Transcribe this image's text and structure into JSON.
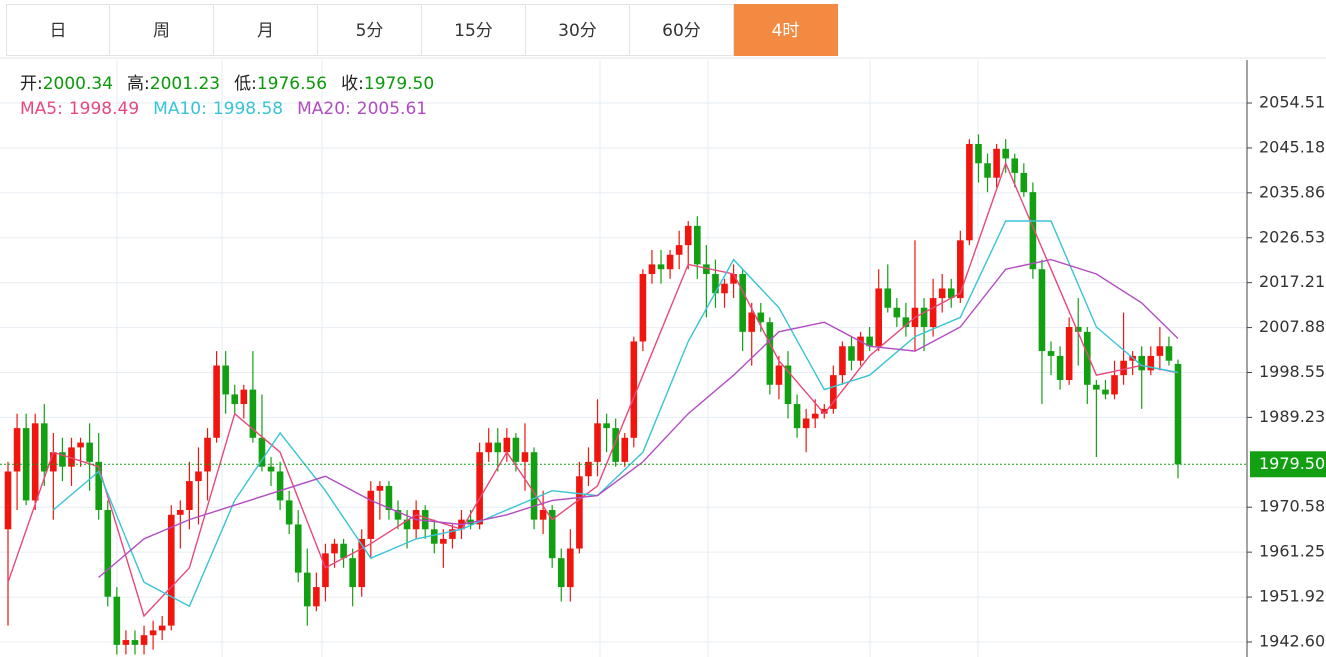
{
  "tabs": {
    "items": [
      "日",
      "周",
      "月",
      "5分",
      "15分",
      "30分",
      "60分",
      "4时"
    ],
    "active": 7
  },
  "header": {
    "ohlc": [
      {
        "label": "开:",
        "value": "2000.34"
      },
      {
        "label": "高:",
        "value": "2001.23"
      },
      {
        "label": "低:",
        "value": "1976.56"
      },
      {
        "label": "收:",
        "value": "1979.50"
      }
    ],
    "label_color": "#222",
    "value_color": "#0a9a0a"
  },
  "chart_data": {
    "type": "candlestick",
    "up_color": "#f0150e",
    "down_color": "#12a012",
    "ylim": [
      1939.48,
      2063.44
    ],
    "yticks": [
      {
        "value": 1942.6,
        "label": "1942.60"
      },
      1951.92,
      1961.25,
      1970.58,
      1989.23,
      1998.55,
      2007.88,
      2017.21,
      2026.53,
      2035.86,
      2045.18,
      2054.51
    ],
    "grid": true,
    "last_price": {
      "value": 1979.5,
      "label": "1979.50",
      "color": "#12a012"
    },
    "candles": [
      [
        1966,
        1980,
        1946,
        1978
      ],
      [
        1978,
        1990,
        1970,
        1987
      ],
      [
        1987,
        1990,
        1971,
        1972
      ],
      [
        1972,
        1990,
        1970,
        1988
      ],
      [
        1988,
        1992,
        1975,
        1978
      ],
      [
        1978,
        1986,
        1968,
        1982
      ],
      [
        1982,
        1985,
        1976,
        1979
      ],
      [
        1979,
        1985,
        1975,
        1983
      ],
      [
        1983,
        1985,
        1979,
        1984
      ],
      [
        1984,
        1988,
        1974,
        1980
      ],
      [
        1980,
        1986,
        1968,
        1970
      ],
      [
        1970,
        1972,
        1950,
        1952
      ],
      [
        1952,
        1954,
        1940,
        1942
      ],
      [
        1942,
        1945,
        1940,
        1943
      ],
      [
        1943,
        1945,
        1940,
        1942
      ],
      [
        1942,
        1946,
        1940,
        1944
      ],
      [
        1944,
        1947,
        1941,
        1945
      ],
      [
        1945,
        1948,
        1943,
        1946
      ],
      [
        1946,
        1971,
        1945,
        1969
      ],
      [
        1969,
        1972,
        1962,
        1970
      ],
      [
        1970,
        1980,
        1966,
        1976
      ],
      [
        1976,
        1983,
        1967,
        1978
      ],
      [
        1978,
        1987,
        1972,
        1985
      ],
      [
        1985,
        2003,
        1984,
        2000
      ],
      [
        2000,
        2003,
        1990,
        1994
      ],
      [
        1994,
        1996,
        1990,
        1992
      ],
      [
        1992,
        1996,
        1989,
        1995
      ],
      [
        1995,
        2003,
        1984,
        1985
      ],
      [
        1985,
        1994,
        1978,
        1979
      ],
      [
        1979,
        1981,
        1975,
        1978
      ],
      [
        1978,
        1980,
        1970,
        1972
      ],
      [
        1972,
        1974,
        1965,
        1967
      ],
      [
        1967,
        1970,
        1955,
        1957
      ],
      [
        1957,
        1962,
        1946,
        1950
      ],
      [
        1950,
        1957,
        1949,
        1954
      ],
      [
        1954,
        1963,
        1951,
        1961
      ],
      [
        1961,
        1964,
        1958,
        1963
      ],
      [
        1963,
        1964,
        1958,
        1960
      ],
      [
        1960,
        1962,
        1950,
        1954
      ],
      [
        1954,
        1966,
        1952,
        1964
      ],
      [
        1964,
        1976,
        1960,
        1974
      ],
      [
        1974,
        1976,
        1968,
        1975
      ],
      [
        1975,
        1976,
        1968,
        1970
      ],
      [
        1970,
        1972,
        1966,
        1968
      ],
      [
        1968,
        1970,
        1962,
        1966
      ],
      [
        1966,
        1972,
        1964,
        1970
      ],
      [
        1970,
        1971,
        1964,
        1966
      ],
      [
        1966,
        1968,
        1961,
        1963
      ],
      [
        1963,
        1966,
        1958,
        1964
      ],
      [
        1964,
        1967,
        1962,
        1966
      ],
      [
        1966,
        1970,
        1964,
        1968
      ],
      [
        1968,
        1970,
        1966,
        1967
      ],
      [
        1967,
        1984,
        1966,
        1982
      ],
      [
        1982,
        1987,
        1980,
        1984
      ],
      [
        1984,
        1987,
        1978,
        1982
      ],
      [
        1982,
        1987,
        1980,
        1985
      ],
      [
        1985,
        1986,
        1978,
        1980
      ],
      [
        1980,
        1988,
        1974,
        1982
      ],
      [
        1982,
        1983,
        1966,
        1968
      ],
      [
        1968,
        1974,
        1965,
        1970
      ],
      [
        1970,
        1971,
        1958,
        1960
      ],
      [
        1960,
        1962,
        1951,
        1954
      ],
      [
        1954,
        1966,
        1951,
        1962
      ],
      [
        1962,
        1980,
        1961,
        1977
      ],
      [
        1977,
        1983,
        1975,
        1980
      ],
      [
        1980,
        1993,
        1977,
        1988
      ],
      [
        1988,
        1990,
        1982,
        1987
      ],
      [
        1987,
        1989,
        1979,
        1980
      ],
      [
        1980,
        1986,
        1979,
        1985
      ],
      [
        1985,
        2006,
        1983,
        2005
      ],
      [
        2005,
        2020,
        2003,
        2019
      ],
      [
        2019,
        2024,
        2017,
        2021
      ],
      [
        2021,
        2024,
        2017,
        2020
      ],
      [
        2020,
        2024,
        2018,
        2023
      ],
      [
        2023,
        2028,
        2020,
        2025
      ],
      [
        2025,
        2030,
        2020,
        2029
      ],
      [
        2029,
        2031,
        2018,
        2021
      ],
      [
        2021,
        2025,
        2010,
        2019
      ],
      [
        2019,
        2022,
        2012,
        2015
      ],
      [
        2015,
        2018,
        2012,
        2017
      ],
      [
        2017,
        2021,
        2014,
        2019
      ],
      [
        2019,
        2020,
        2003,
        2007
      ],
      [
        2007,
        2013,
        2000,
        2011
      ],
      [
        2011,
        2013,
        2007,
        2009
      ],
      [
        2009,
        2010,
        1994,
        1996
      ],
      [
        1996,
        2002,
        1993,
        2000
      ],
      [
        2000,
        2003,
        1989,
        1992
      ],
      [
        1992,
        1994,
        1985,
        1987
      ],
      [
        1987,
        1991,
        1982,
        1989
      ],
      [
        1989,
        1993,
        1987,
        1990
      ],
      [
        1990,
        1992,
        1989,
        1991
      ],
      [
        1991,
        2000,
        1990,
        1998
      ],
      [
        1998,
        2005,
        1996,
        2004
      ],
      [
        2004,
        2006,
        1999,
        2001
      ],
      [
        2001,
        2007,
        2000,
        2006
      ],
      [
        2006,
        2008,
        2003,
        2004
      ],
      [
        2004,
        2020,
        2003,
        2016
      ],
      [
        2016,
        2021,
        2011,
        2012
      ],
      [
        2012,
        2014,
        2008,
        2010
      ],
      [
        2010,
        2013,
        2006,
        2008
      ],
      [
        2008,
        2026,
        2003,
        2012
      ],
      [
        2012,
        2014,
        2003,
        2008
      ],
      [
        2008,
        2018,
        2006,
        2014
      ],
      [
        2014,
        2019,
        2011,
        2016
      ],
      [
        2016,
        2018,
        2012,
        2014
      ],
      [
        2014,
        2028,
        2013,
        2026
      ],
      [
        2026,
        2047,
        2025,
        2046
      ],
      [
        2046,
        2048,
        2038,
        2042
      ],
      [
        2042,
        2044,
        2036,
        2039
      ],
      [
        2039,
        2046,
        2037,
        2045
      ],
      [
        2045,
        2047,
        2040,
        2043
      ],
      [
        2043,
        2044,
        2037,
        2040
      ],
      [
        2040,
        2042,
        2035,
        2036
      ],
      [
        2036,
        2038,
        2018,
        2020
      ],
      [
        2020,
        2022,
        1992,
        2003
      ],
      [
        2003,
        2005,
        1998,
        2002
      ],
      [
        2002,
        2004,
        1995,
        1997
      ],
      [
        1997,
        2010,
        1996,
        2008
      ],
      [
        2008,
        2014,
        2000,
        2007
      ],
      [
        2007,
        2008,
        1992,
        1996
      ],
      [
        1996,
        1997,
        1981,
        1995
      ],
      [
        1995,
        1997,
        1993,
        1994
      ],
      [
        1994,
        2001,
        1993,
        1998
      ],
      [
        1998,
        2011,
        1996,
        2001
      ],
      [
        2001,
        2003,
        1998,
        2002
      ],
      [
        2002,
        2004,
        1991,
        1999
      ],
      [
        1999,
        2004,
        1998,
        2002
      ],
      [
        2002,
        2008,
        1999,
        2004
      ],
      [
        2004,
        2006,
        2000,
        2001
      ],
      [
        2000.34,
        2001.23,
        1976.56,
        1979.5
      ]
    ],
    "series": [
      {
        "name": "MA5:",
        "current": "1998.49",
        "color": "#e8487c",
        "x": [
          0,
          5,
          10,
          15,
          20,
          25,
          30,
          35,
          40,
          45,
          50,
          55,
          60,
          65,
          70,
          75,
          80,
          85,
          90,
          95,
          100,
          105,
          110,
          115,
          120,
          125,
          129
        ],
        "values": [
          1955,
          1982,
          1979,
          1948,
          1958,
          1990,
          1982,
          1958,
          1963,
          1969,
          1966,
          1982,
          1968,
          1975,
          1998,
          2021,
          2019,
          2001,
          1990,
          2002,
          2010,
          2015,
          2042,
          2020,
          1998,
          2000,
          1998.49
        ]
      },
      {
        "name": "MA10:",
        "current": "1998.58",
        "color": "#38c4d6",
        "x": [
          5,
          10,
          15,
          20,
          25,
          30,
          35,
          40,
          45,
          50,
          55,
          60,
          65,
          70,
          75,
          80,
          85,
          90,
          95,
          100,
          105,
          110,
          115,
          120,
          125,
          129
        ],
        "values": [
          1970,
          1978,
          1955,
          1950,
          1972,
          1986,
          1974,
          1960,
          1964,
          1966,
          1970,
          1974,
          1973,
          1982,
          2005,
          2022,
          2012,
          1995,
          1998,
          2006,
          2010,
          2030,
          2030,
          2008,
          2000,
          1998.58
        ]
      },
      {
        "name": "MA20:",
        "current": "2005.61",
        "color": "#b24cc2",
        "x": [
          10,
          15,
          20,
          25,
          30,
          35,
          40,
          45,
          50,
          55,
          60,
          65,
          70,
          75,
          80,
          85,
          90,
          95,
          100,
          105,
          110,
          115,
          120,
          125,
          129
        ],
        "values": [
          1956,
          1964,
          1968,
          1971,
          1974,
          1977,
          1972,
          1968,
          1967,
          1969,
          1972,
          1973,
          1980,
          1990,
          1998,
          2007,
          2009,
          2004,
          2003,
          2008,
          2020,
          2022,
          2019,
          2013,
          2005.61
        ]
      }
    ]
  }
}
